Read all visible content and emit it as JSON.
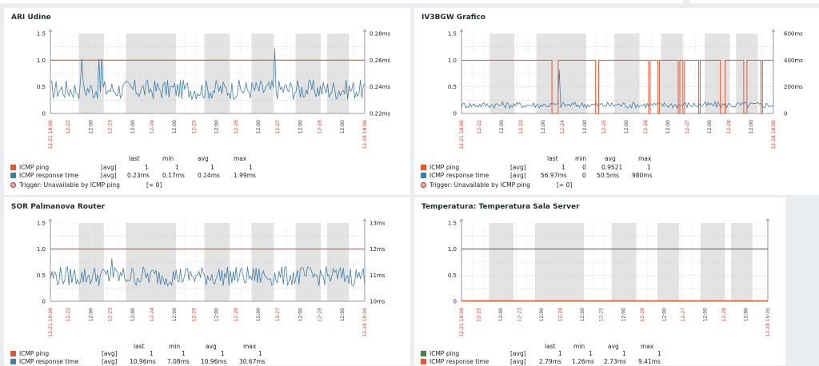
{
  "widgets": [
    {
      "title": "ARI Udine",
      "left_axis": [
        "1.5",
        "1.0",
        "0.5",
        "0"
      ],
      "right_axis": [
        "0.28ms",
        "0.26ms",
        "0.24ms",
        "0.22ms"
      ],
      "start_label": "12-21 19:06",
      "end_label": "12-28 19:06",
      "time_labels": [
        "12-22",
        "12:00",
        "12-23",
        "12:00",
        "12-24",
        "12:00",
        "12-25",
        "12:00",
        "12-26",
        "12:00",
        "12-27",
        "12:00",
        "12-28",
        "12:00"
      ],
      "legend_headers": [
        "last",
        "min",
        "avg",
        "max"
      ],
      "legend_rows": [
        {
          "name": "ICMP ping",
          "func": "[avg]",
          "last": "1",
          "min": "1",
          "avg": "1",
          "max": "1",
          "color": "#e8552a"
        },
        {
          "name": "ICMP response time",
          "func": "[avg]",
          "last": "0.23ms",
          "min": "0.17ms",
          "avg": "0.24ms",
          "max": "1.99ms",
          "color": "#3f7fa8"
        }
      ],
      "trigger": {
        "name": "Trigger: Unavailable by ICMP ping",
        "value": "[= 0]"
      }
    },
    {
      "title": "IV3BGW Grafico",
      "left_axis": [
        "1.5",
        "1.0",
        "0.5",
        "0"
      ],
      "right_axis": [
        "600ms",
        "400ms",
        "200ms",
        "0"
      ],
      "start_label": "12-21 19:06",
      "end_label": "12-28 19:06",
      "time_labels": [
        "12-22",
        "12:00",
        "12-23",
        "12:00",
        "12-24",
        "12:00",
        "12-25",
        "12:00",
        "12-26",
        "12:00",
        "12-27",
        "12:00",
        "12-28",
        "12:00"
      ],
      "legend_headers": [
        "last",
        "min",
        "avg",
        "max"
      ],
      "legend_rows": [
        {
          "name": "ICMP ping",
          "func": "[avg]",
          "last": "1",
          "min": "0",
          "avg": "0.9521",
          "max": "1",
          "color": "#e8552a"
        },
        {
          "name": "ICMP response time",
          "func": "[avg]",
          "last": "56.97ms",
          "min": "0",
          "avg": "50.5ms",
          "max": "980ms",
          "color": "#3f7fa8"
        }
      ],
      "trigger": {
        "name": "Trigger: Unavailable by ICMP ping",
        "value": "[= 0]"
      }
    },
    {
      "title": "SOR Palmanova Router",
      "left_axis": [
        "1.5",
        "1.0",
        "0.5",
        "0"
      ],
      "right_axis": [
        "13ms",
        "12ms",
        "11ms",
        "10ms"
      ],
      "start_label": "12-21 19:06",
      "end_label": "12-28 19:06",
      "time_labels": [
        "12-22",
        "12:00",
        "12-23",
        "12:00",
        "12-24",
        "12:00",
        "12-25",
        "12:00",
        "12-26",
        "12:00",
        "12-27",
        "12:00",
        "12-28",
        "12:00"
      ],
      "legend_headers": [
        "last",
        "min",
        "avg",
        "max"
      ],
      "legend_rows": [
        {
          "name": "ICMP ping",
          "func": "[avg]",
          "last": "1",
          "min": "1",
          "avg": "1",
          "max": "1",
          "color": "#e8552a"
        },
        {
          "name": "ICMP response time",
          "func": "[avg]",
          "last": "10.96ms",
          "min": "7.08ms",
          "avg": "10.96ms",
          "max": "30.67ms",
          "color": "#3f7fa8"
        }
      ]
    },
    {
      "title": "Temperatura: Temperatura Sala Server",
      "left_axis": [
        "1.5",
        "1.0",
        "0.5",
        "0"
      ],
      "right_axis": [],
      "start_label": "12-21 19:06",
      "end_label": "12-28 19:06",
      "time_labels": [
        "12-22",
        "12:00",
        "12-23",
        "12:00",
        "12-24",
        "12:00",
        "12-25",
        "12:00",
        "12-26",
        "12:00",
        "12-27",
        "12:00",
        "12-28",
        "12:00"
      ],
      "legend_headers": [
        "last",
        "min",
        "avg",
        "max"
      ],
      "legend_rows": [
        {
          "name": "ICMP ping",
          "func": "[avg]",
          "last": "1",
          "min": "1",
          "avg": "1",
          "max": "1",
          "color": "#3c8a3c"
        },
        {
          "name": "ICMP response time",
          "func": "[avg]",
          "last": "2.79ms",
          "min": "1.26ms",
          "avg": "2.73ms",
          "max": "9.41ms",
          "color": "#e8552a"
        }
      ]
    }
  ]
}
